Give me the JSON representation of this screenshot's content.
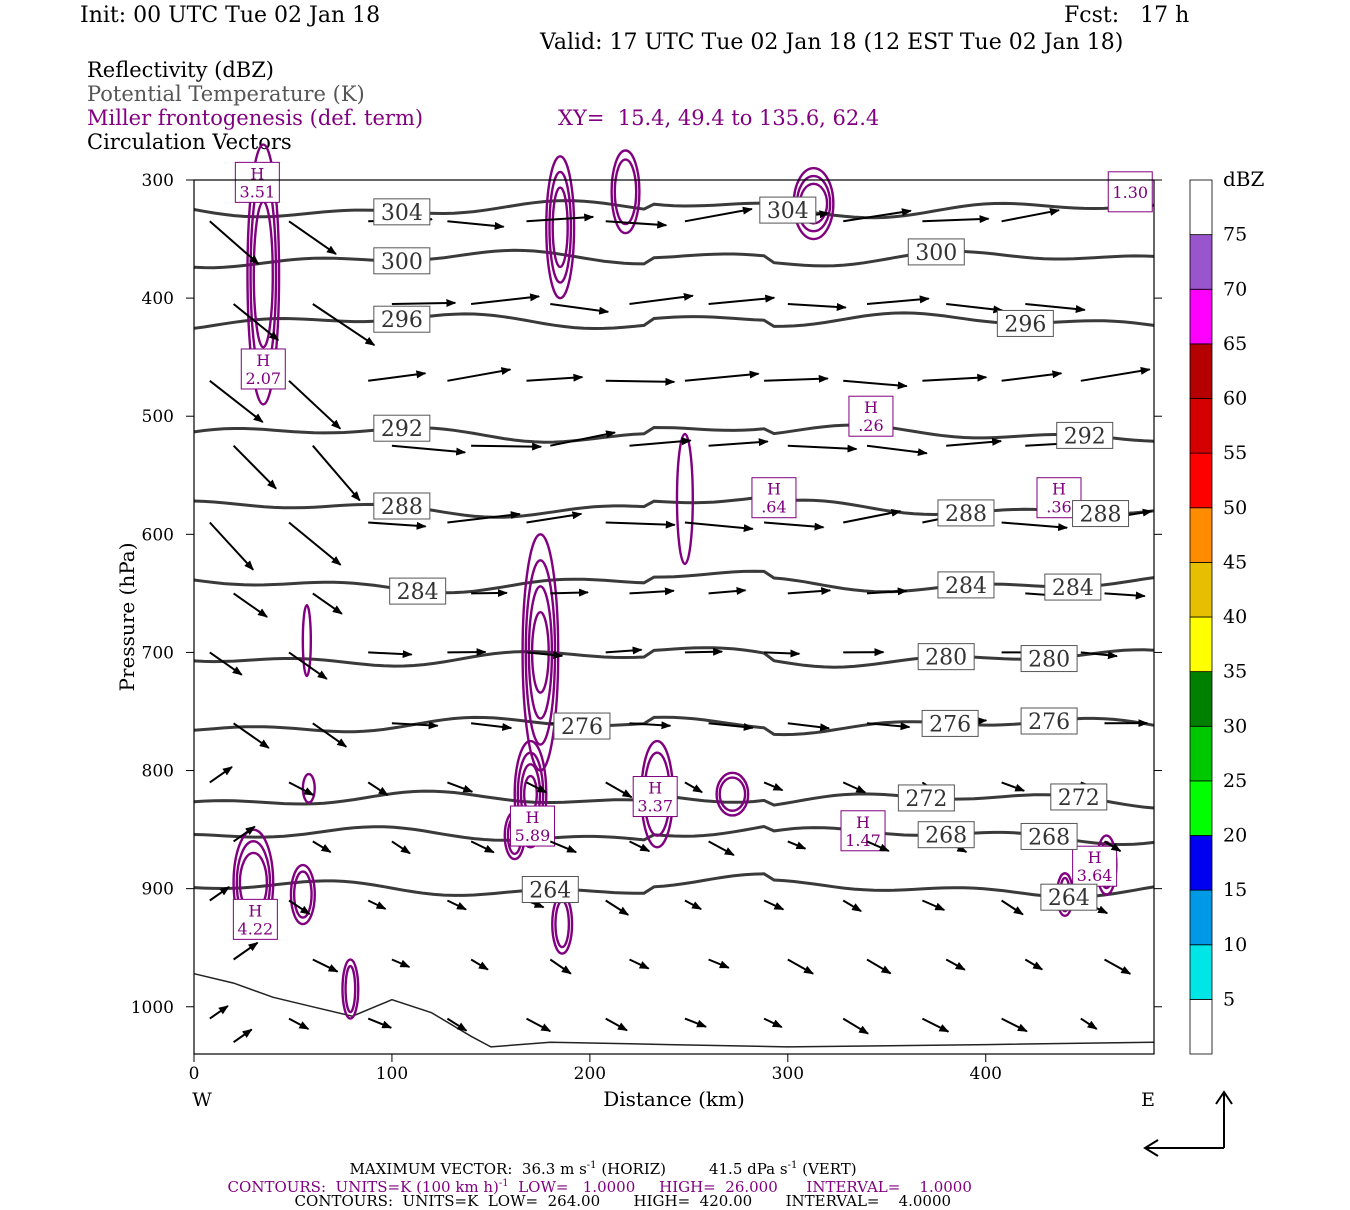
{
  "header": {
    "init": "Init: 00 UTC Tue 02 Jan 18",
    "fcst": "Fcst:   17 h",
    "valid": "Valid: 17 UTC Tue 02 Jan 18 (12 EST Tue 02 Jan 18)"
  },
  "fields": {
    "reflectivity": "Reflectivity (dBZ)",
    "theta": "Potential Temperature (K)",
    "frontogenesis": "Miller frontogenesis (def. term)",
    "xy": "XY=  15.4, 49.4 to 135.6, 62.4",
    "vectors": "Circulation Vectors"
  },
  "colors": {
    "theta": "#3a3a3a",
    "frontogenesis": "#800080",
    "vector": "#000000"
  },
  "chart_data": {
    "type": "cross-section",
    "xlabel": "Distance (km)",
    "ylabel": "Pressure (hPa)",
    "xlim": [
      0,
      485
    ],
    "ylim": [
      1040,
      300
    ],
    "x_ticks": [
      0,
      100,
      200,
      300,
      400
    ],
    "y_ticks": [
      300,
      400,
      500,
      600,
      700,
      800,
      900,
      1000
    ],
    "x_end_labels": {
      "left": "W",
      "right": "E"
    },
    "colorbar": {
      "label": "dBZ",
      "levels": [
        5,
        10,
        15,
        20,
        25,
        30,
        35,
        40,
        45,
        50,
        55,
        60,
        65,
        70,
        75
      ],
      "colors": [
        "#ffffff",
        "#00e5e5",
        "#0099e5",
        "#0000f0",
        "#00ff00",
        "#00c800",
        "#008000",
        "#ffff00",
        "#e6c000",
        "#ff8c00",
        "#ff0000",
        "#d40000",
        "#b40000",
        "#ff00ff",
        "#9955cc",
        "#ffffff"
      ]
    },
    "theta_contours": [
      {
        "label": "304",
        "p": 325,
        "label_at": [
          105,
          300
        ]
      },
      {
        "label": "300",
        "p": 367,
        "label_at": [
          105,
          375
        ]
      },
      {
        "label": "296",
        "p": 420,
        "label_at": [
          105,
          420
        ]
      },
      {
        "label": "292",
        "p": 515,
        "label_at": [
          105,
          450
        ]
      },
      {
        "label": "288",
        "p": 578,
        "label_at": [
          105,
          390,
          458
        ]
      },
      {
        "label": "284",
        "p": 642,
        "label_at": [
          113,
          390,
          444
        ]
      },
      {
        "label": "280",
        "p": 705,
        "label_at": [
          380,
          432
        ]
      },
      {
        "label": "276",
        "p": 762,
        "label_at": [
          196,
          382,
          432
        ]
      },
      {
        "label": "272",
        "p": 825,
        "label_at": [
          370,
          447
        ]
      },
      {
        "label": "268",
        "p": 855,
        "label_at": [
          380,
          432
        ]
      },
      {
        "label": "264",
        "p": 900,
        "label_at": [
          180,
          442
        ]
      }
    ],
    "frontogenesis_maxima": [
      {
        "label": "H",
        "value": "3.51",
        "x": 32,
        "p": 302
      },
      {
        "label": "H",
        "value": "2.07",
        "x": 35,
        "p": 460
      },
      {
        "label": "H",
        "value": ".26",
        "x": 342,
        "p": 500
      },
      {
        "label": "H",
        "value": ".64",
        "x": 293,
        "p": 569
      },
      {
        "label": "H",
        "value": ".36",
        "x": 437,
        "p": 569
      },
      {
        "label": "H",
        "value": "5.89",
        "x": 171,
        "p": 847
      },
      {
        "label": "H",
        "value": "3.37",
        "x": 233,
        "p": 822
      },
      {
        "label": "H",
        "value": "1.47",
        "x": 338,
        "p": 851
      },
      {
        "label": "H",
        "value": "3.64",
        "x": 455,
        "p": 881
      },
      {
        "label": "H",
        "value": "4.22",
        "x": 31,
        "p": 926
      },
      {
        "label": "",
        "value": "1.30",
        "x": 473,
        "p": 310
      }
    ],
    "vectors_rows_p": [
      335,
      405,
      470,
      525,
      590,
      650,
      700,
      760,
      810,
      860,
      910,
      960,
      1010,
      1030
    ],
    "max_vector_text": "MAXIMUM VECTOR:  36.3 m s",
    "max_vector_horiz": "(HORIZ)",
    "max_vector_vert": "41.5 dPa s",
    "max_vector_vert_unit": "(VERT)",
    "contours_purple": {
      "prefix": "CONTOURS:  UNITS=K (100 km h)",
      "low": "LOW=   1.0000",
      "high": "HIGH=  26.000",
      "interval": "INTERVAL=    1.0000"
    },
    "contours_black": {
      "prefix": "CONTOURS:  UNITS=K",
      "low": "LOW=  264.00",
      "high": "HIGH=  420.00",
      "interval": "INTERVAL=    4.0000"
    }
  }
}
